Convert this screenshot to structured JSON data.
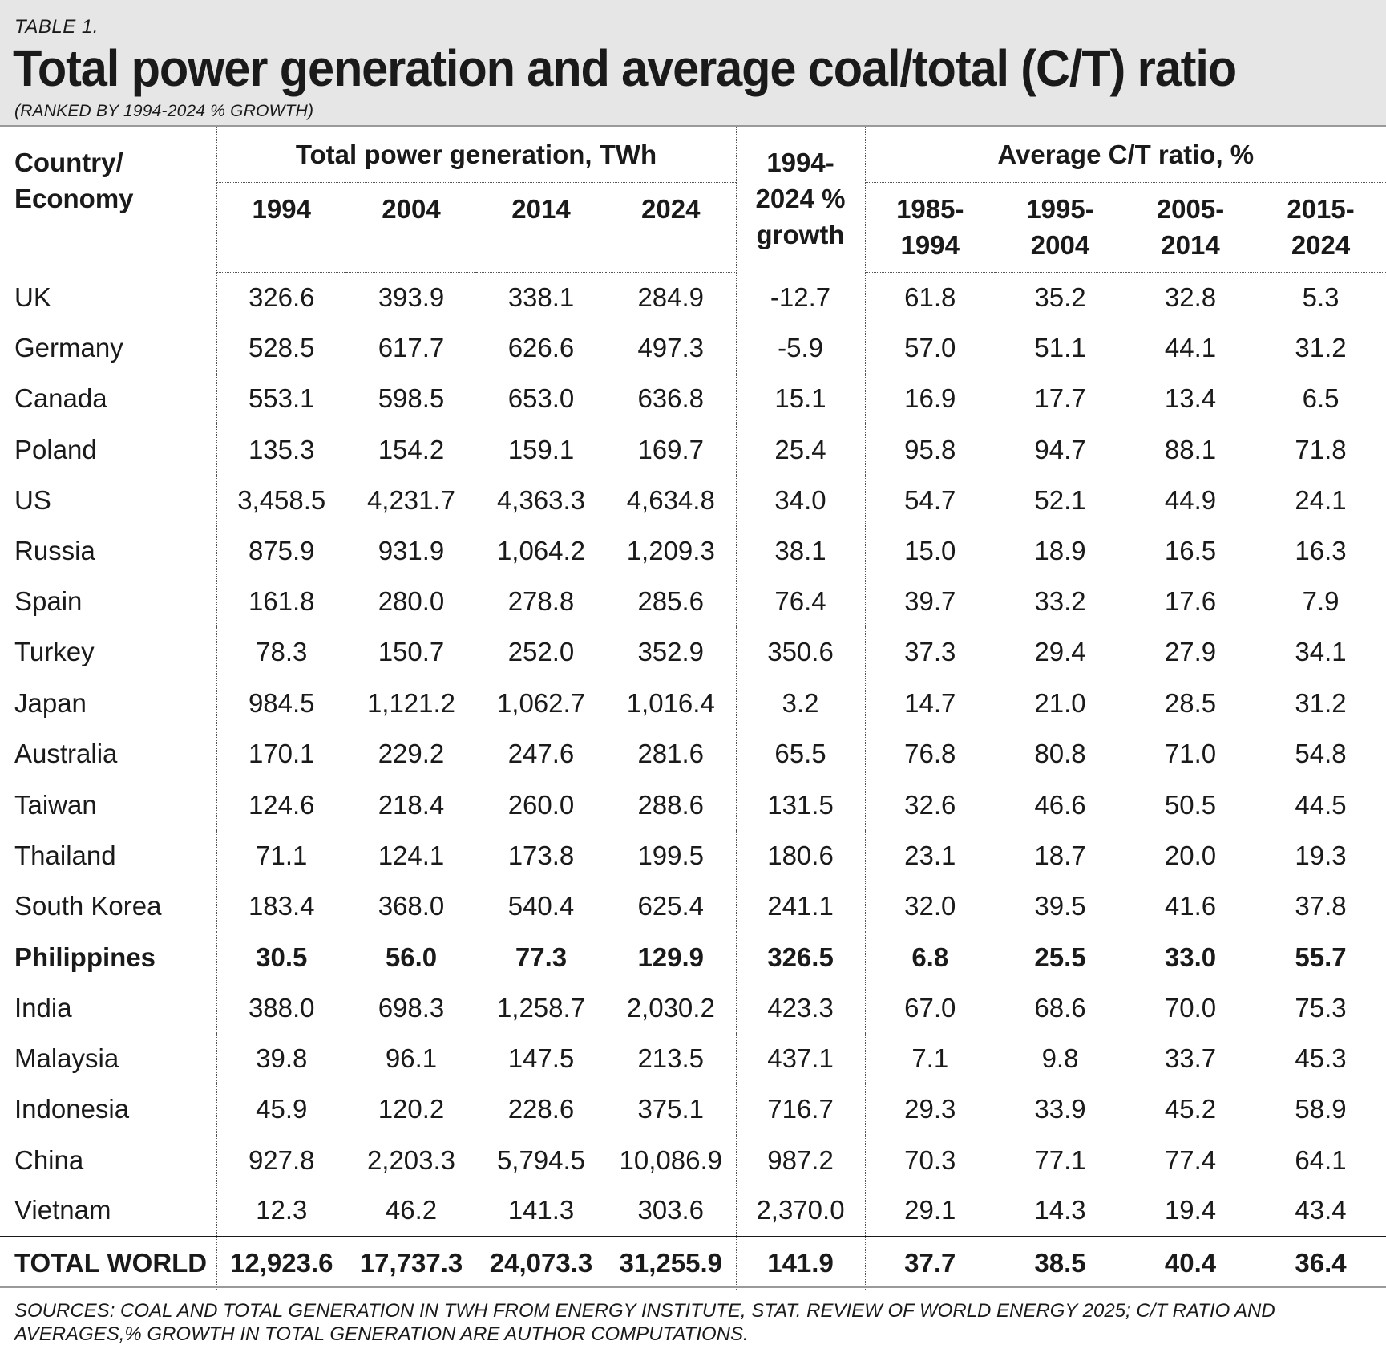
{
  "header": {
    "table_label": "TABLE 1.",
    "title": "Total power generation and average coal/total (C/T) ratio",
    "subtitle": "(RANKED BY 1994-2024 % GROWTH)"
  },
  "columns": {
    "country": [
      "Country/",
      "Economy"
    ],
    "group_generation": "Total power generation, TWh",
    "group_ratio": "Average C/T ratio, %",
    "growth": [
      "1994-",
      "2024 %",
      "growth"
    ],
    "years": [
      "1994",
      "2004",
      "2014",
      "2024"
    ],
    "periods": [
      [
        "1985-",
        "1994"
      ],
      [
        "1995-",
        "2004"
      ],
      [
        "2005-",
        "2014"
      ],
      [
        "2015-",
        "2024"
      ]
    ]
  },
  "chart_data": {
    "type": "table",
    "title": "Total power generation and average coal/total (C/T) ratio",
    "subtitle": "(RANKED BY 1994-2024 % GROWTH)",
    "rows": [
      [
        "UK",
        "326.6",
        "393.9",
        "338.1",
        "284.9",
        "-12.7",
        "61.8",
        "35.2",
        "32.8",
        "5.3"
      ],
      [
        "Germany",
        "528.5",
        "617.7",
        "626.6",
        "497.3",
        "-5.9",
        "57.0",
        "51.1",
        "44.1",
        "31.2"
      ],
      [
        "Canada",
        "553.1",
        "598.5",
        "653.0",
        "636.8",
        "15.1",
        "16.9",
        "17.7",
        "13.4",
        "6.5"
      ],
      [
        "Poland",
        "135.3",
        "154.2",
        "159.1",
        "169.7",
        "25.4",
        "95.8",
        "94.7",
        "88.1",
        "71.8"
      ],
      [
        "US",
        "3,458.5",
        "4,231.7",
        "4,363.3",
        "4,634.8",
        "34.0",
        "54.7",
        "52.1",
        "44.9",
        "24.1"
      ],
      [
        "Russia",
        "875.9",
        "931.9",
        "1,064.2",
        "1,209.3",
        "38.1",
        "15.0",
        "18.9",
        "16.5",
        "16.3"
      ],
      [
        "Spain",
        "161.8",
        "280.0",
        "278.8",
        "285.6",
        "76.4",
        "39.7",
        "33.2",
        "17.6",
        "7.9"
      ],
      [
        "Turkey",
        "78.3",
        "150.7",
        "252.0",
        "352.9",
        "350.6",
        "37.3",
        "29.4",
        "27.9",
        "34.1"
      ],
      [
        "Japan",
        "984.5",
        "1,121.2",
        "1,062.7",
        "1,016.4",
        "3.2",
        "14.7",
        "21.0",
        "28.5",
        "31.2"
      ],
      [
        "Australia",
        "170.1",
        "229.2",
        "247.6",
        "281.6",
        "65.5",
        "76.8",
        "80.8",
        "71.0",
        "54.8"
      ],
      [
        "Taiwan",
        "124.6",
        "218.4",
        "260.0",
        "288.6",
        "131.5",
        "32.6",
        "46.6",
        "50.5",
        "44.5"
      ],
      [
        "Thailand",
        "71.1",
        "124.1",
        "173.8",
        "199.5",
        "180.6",
        "23.1",
        "18.7",
        "20.0",
        "19.3"
      ],
      [
        "South Korea",
        "183.4",
        "368.0",
        "540.4",
        "625.4",
        "241.1",
        "32.0",
        "39.5",
        "41.6",
        "37.8"
      ],
      [
        "Philippines",
        "30.5",
        "56.0",
        "77.3",
        "129.9",
        "326.5",
        "6.8",
        "25.5",
        "33.0",
        "55.7"
      ],
      [
        "India",
        "388.0",
        "698.3",
        "1,258.7",
        "2,030.2",
        "423.3",
        "67.0",
        "68.6",
        "70.0",
        "75.3"
      ],
      [
        "Malaysia",
        "39.8",
        "96.1",
        "147.5",
        "213.5",
        "437.1",
        "7.1",
        "9.8",
        "33.7",
        "45.3"
      ],
      [
        "Indonesia",
        "45.9",
        "120.2",
        "228.6",
        "375.1",
        "716.7",
        "29.3",
        "33.9",
        "45.2",
        "58.9"
      ],
      [
        "China",
        "927.8",
        "2,203.3",
        "5,794.5",
        "10,086.9",
        "987.2",
        "70.3",
        "77.1",
        "77.4",
        "64.1"
      ],
      [
        "Vietnam",
        "12.3",
        "46.2",
        "141.3",
        "303.6",
        "2,370.0",
        "29.1",
        "14.3",
        "19.4",
        "43.4"
      ]
    ],
    "total": [
      "TOTAL WORLD",
      "12,923.6",
      "17,737.3",
      "24,073.3",
      "31,255.9",
      "141.9",
      "37.7",
      "38.5",
      "40.4",
      "36.4"
    ],
    "highlighted_row": "Philippines"
  },
  "footer": {
    "source": "SOURCES: COAL AND TOTAL GENERATION IN TWH FROM ENERGY INSTITUTE, STAT. REVIEW OF WORLD ENERGY 2025; C/T RATIO AND AVERAGES,% GROWTH IN TOTAL GENERATION ARE AUTHOR COMPUTATIONS."
  }
}
